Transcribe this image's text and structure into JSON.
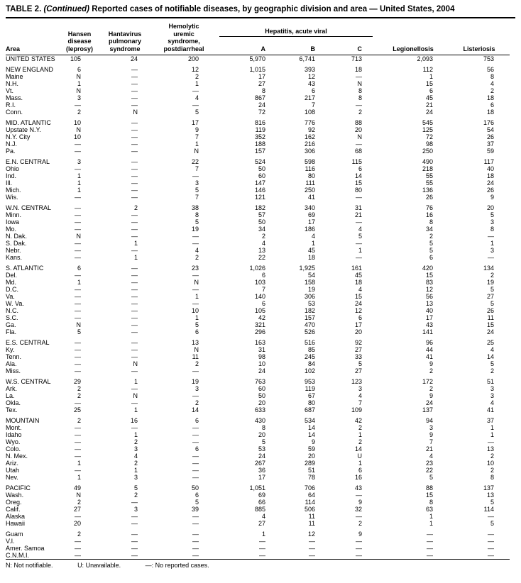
{
  "title": {
    "prefix": "TABLE 2.",
    "continued": "(Continued)",
    "rest": "Reported cases of notifiable diseases, by geographic division and area — United States, 2004"
  },
  "table": {
    "headers": {
      "area": "Area",
      "hansen": "Hansen\ndisease\n(leprosy)",
      "hantavirus": "Hantavirus\npulmonary\nsyndrome",
      "hus": "Hemolytic\nuremic\nsyndrome,\npostdiarrheal",
      "hepatitis": "Hepatitis, acute viral",
      "hep_a": "A",
      "hep_b": "B",
      "hep_c": "C",
      "legionellosis": "Legionellosis",
      "listeriosis": "Listeriosis"
    },
    "groups": [
      {
        "rows": [
          [
            "UNITED STATES",
            "105",
            "24",
            "200",
            "5,970",
            "6,741",
            "713",
            "2,093",
            "753"
          ]
        ]
      },
      {
        "rows": [
          [
            "NEW ENGLAND",
            "6",
            "—",
            "12",
            "1,015",
            "393",
            "18",
            "112",
            "56"
          ],
          [
            "Maine",
            "N",
            "—",
            "2",
            "17",
            "12",
            "—",
            "1",
            "8"
          ],
          [
            "N.H.",
            "1",
            "—",
            "1",
            "27",
            "43",
            "N",
            "15",
            "4"
          ],
          [
            "Vt.",
            "N",
            "—",
            "—",
            "8",
            "6",
            "8",
            "6",
            "2"
          ],
          [
            "Mass.",
            "3",
            "—",
            "4",
            "867",
            "217",
            "8",
            "45",
            "18"
          ],
          [
            "R.I.",
            "—",
            "—",
            "—",
            "24",
            "7",
            "—",
            "21",
            "6"
          ],
          [
            "Conn.",
            "2",
            "N",
            "5",
            "72",
            "108",
            "2",
            "24",
            "18"
          ]
        ]
      },
      {
        "rows": [
          [
            "MID. ATLANTIC",
            "10",
            "—",
            "17",
            "816",
            "776",
            "88",
            "545",
            "176"
          ],
          [
            "Upstate N.Y.",
            "N",
            "—",
            "9",
            "119",
            "92",
            "20",
            "125",
            "54"
          ],
          [
            "N.Y. City",
            "10",
            "—",
            "7",
            "352",
            "162",
            "N",
            "72",
            "26"
          ],
          [
            "N.J.",
            "—",
            "—",
            "1",
            "188",
            "216",
            "—",
            "98",
            "37"
          ],
          [
            "Pa.",
            "—",
            "—",
            "N",
            "157",
            "306",
            "68",
            "250",
            "59"
          ]
        ]
      },
      {
        "rows": [
          [
            "E.N. CENTRAL",
            "3",
            "—",
            "22",
            "524",
            "598",
            "115",
            "490",
            "117"
          ],
          [
            "Ohio",
            "—",
            "—",
            "7",
            "50",
            "116",
            "6",
            "218",
            "40"
          ],
          [
            "Ind.",
            "1",
            "—",
            "—",
            "60",
            "80",
            "14",
            "55",
            "18"
          ],
          [
            "Ill.",
            "1",
            "—",
            "3",
            "147",
            "111",
            "15",
            "55",
            "24"
          ],
          [
            "Mich.",
            "1",
            "—",
            "5",
            "146",
            "250",
            "80",
            "136",
            "26"
          ],
          [
            "Wis.",
            "—",
            "—",
            "7",
            "121",
            "41",
            "—",
            "26",
            "9"
          ]
        ]
      },
      {
        "rows": [
          [
            "W.N. CENTRAL",
            "—",
            "2",
            "38",
            "182",
            "340",
            "31",
            "76",
            "20"
          ],
          [
            "Minn.",
            "—",
            "—",
            "8",
            "57",
            "69",
            "21",
            "16",
            "5"
          ],
          [
            "Iowa",
            "—",
            "—",
            "5",
            "50",
            "17",
            "—",
            "8",
            "3"
          ],
          [
            "Mo.",
            "—",
            "—",
            "19",
            "34",
            "186",
            "4",
            "34",
            "8"
          ],
          [
            "N. Dak.",
            "N",
            "—",
            "—",
            "2",
            "4",
            "5",
            "2",
            "—"
          ],
          [
            "S. Dak.",
            "—",
            "1",
            "—",
            "4",
            "1",
            "—",
            "5",
            "1"
          ],
          [
            "Nebr.",
            "—",
            "—",
            "4",
            "13",
            "45",
            "1",
            "5",
            "3"
          ],
          [
            "Kans.",
            "—",
            "1",
            "2",
            "22",
            "18",
            "—",
            "6",
            "—"
          ]
        ]
      },
      {
        "rows": [
          [
            "S. ATLANTIC",
            "6",
            "—",
            "23",
            "1,026",
            "1,925",
            "161",
            "420",
            "134"
          ],
          [
            "Del.",
            "—",
            "—",
            "—",
            "6",
            "54",
            "45",
            "15",
            "2"
          ],
          [
            "Md.",
            "1",
            "—",
            "N",
            "103",
            "158",
            "18",
            "83",
            "19"
          ],
          [
            "D.C.",
            "—",
            "—",
            "—",
            "7",
            "19",
            "4",
            "12",
            "5"
          ],
          [
            "Va.",
            "—",
            "—",
            "1",
            "140",
            "306",
            "15",
            "56",
            "27"
          ],
          [
            "W. Va.",
            "—",
            "—",
            "—",
            "6",
            "53",
            "24",
            "13",
            "5"
          ],
          [
            "N.C.",
            "—",
            "—",
            "10",
            "105",
            "182",
            "12",
            "40",
            "26"
          ],
          [
            "S.C.",
            "—",
            "—",
            "1",
            "42",
            "157",
            "6",
            "17",
            "11"
          ],
          [
            "Ga.",
            "N",
            "—",
            "5",
            "321",
            "470",
            "17",
            "43",
            "15"
          ],
          [
            "Fla.",
            "5",
            "—",
            "6",
            "296",
            "526",
            "20",
            "141",
            "24"
          ]
        ]
      },
      {
        "rows": [
          [
            "E.S. CENTRAL",
            "—",
            "—",
            "13",
            "163",
            "516",
            "92",
            "96",
            "25"
          ],
          [
            "Ky.",
            "—",
            "—",
            "N",
            "31",
            "85",
            "27",
            "44",
            "4"
          ],
          [
            "Tenn.",
            "—",
            "—",
            "11",
            "98",
            "245",
            "33",
            "41",
            "14"
          ],
          [
            "Ala.",
            "—",
            "N",
            "2",
            "10",
            "84",
            "5",
            "9",
            "5"
          ],
          [
            "Miss.",
            "—",
            "—",
            "—",
            "24",
            "102",
            "27",
            "2",
            "2"
          ]
        ]
      },
      {
        "rows": [
          [
            "W.S. CENTRAL",
            "29",
            "1",
            "19",
            "763",
            "953",
            "123",
            "172",
            "51"
          ],
          [
            "Ark.",
            "2",
            "—",
            "3",
            "60",
            "119",
            "3",
            "2",
            "3"
          ],
          [
            "La.",
            "2",
            "N",
            "—",
            "50",
            "67",
            "4",
            "9",
            "3"
          ],
          [
            "Okla.",
            "—",
            "—",
            "2",
            "20",
            "80",
            "7",
            "24",
            "4"
          ],
          [
            "Tex.",
            "25",
            "1",
            "14",
            "633",
            "687",
            "109",
            "137",
            "41"
          ]
        ]
      },
      {
        "rows": [
          [
            "MOUNTAIN",
            "2",
            "16",
            "6",
            "430",
            "534",
            "42",
            "94",
            "37"
          ],
          [
            "Mont.",
            "—",
            "—",
            "—",
            "8",
            "14",
            "2",
            "3",
            "1"
          ],
          [
            "Idaho",
            "—",
            "1",
            "—",
            "20",
            "14",
            "1",
            "9",
            "1"
          ],
          [
            "Wyo.",
            "—",
            "2",
            "—",
            "5",
            "9",
            "2",
            "7",
            "—"
          ],
          [
            "Colo.",
            "—",
            "3",
            "6",
            "53",
            "59",
            "14",
            "21",
            "13"
          ],
          [
            "N. Mex.",
            "—",
            "4",
            "—",
            "24",
            "20",
            "U",
            "4",
            "2"
          ],
          [
            "Ariz.",
            "1",
            "2",
            "—",
            "267",
            "289",
            "1",
            "23",
            "10"
          ],
          [
            "Utah",
            "—",
            "1",
            "—",
            "36",
            "51",
            "6",
            "22",
            "2"
          ],
          [
            "Nev.",
            "1",
            "3",
            "—",
            "17",
            "78",
            "16",
            "5",
            "8"
          ]
        ]
      },
      {
        "rows": [
          [
            "PACIFIC",
            "49",
            "5",
            "50",
            "1,051",
            "706",
            "43",
            "88",
            "137"
          ],
          [
            "Wash.",
            "N",
            "2",
            "6",
            "69",
            "64",
            "—",
            "15",
            "13"
          ],
          [
            "Oreg.",
            "2",
            "—",
            "5",
            "66",
            "114",
            "9",
            "8",
            "5"
          ],
          [
            "Calif.",
            "27",
            "3",
            "39",
            "885",
            "506",
            "32",
            "63",
            "114"
          ],
          [
            "Alaska",
            "—",
            "—",
            "—",
            "4",
            "11",
            "—",
            "1",
            "—"
          ],
          [
            "Hawaii",
            "20",
            "—",
            "—",
            "27",
            "11",
            "2",
            "1",
            "5"
          ]
        ]
      },
      {
        "rows": [
          [
            "Guam",
            "2",
            "—",
            "—",
            "1",
            "12",
            "9",
            "—",
            "—"
          ],
          [
            "V.I.",
            "—",
            "—",
            "—",
            "—",
            "—",
            "—",
            "—",
            "—"
          ],
          [
            "Amer. Samoa",
            "—",
            "—",
            "—",
            "—",
            "—",
            "—",
            "—",
            "—"
          ],
          [
            "C.N.M.I.",
            "—",
            "—",
            "—",
            "—",
            "—",
            "—",
            "—",
            "—"
          ]
        ]
      }
    ]
  },
  "footnotes": [
    "N: Not notifiable.",
    "U: Unavailable.",
    "—: No reported cases."
  ]
}
